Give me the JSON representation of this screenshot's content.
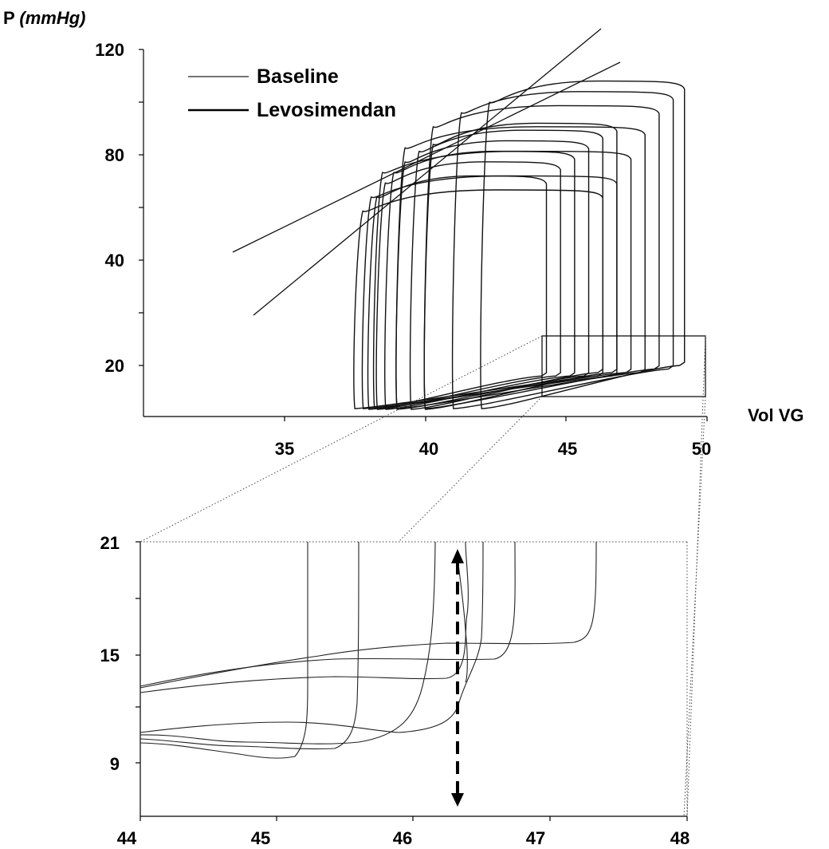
{
  "chart_data": [
    {
      "type": "line",
      "title": "",
      "ylabel_main": "P",
      "ylabel_unit": "(mmHg)",
      "xlabel": "Vol VG",
      "x_ticks": [
        "35",
        "40",
        "45",
        "50"
      ],
      "y_ticks": [
        "20",
        "40",
        "80",
        "120"
      ],
      "legend": [
        "Baseline",
        "Levosimendan"
      ],
      "legend_position": "top-left",
      "series": [
        {
          "name": "Baseline",
          "description_loops": [
            {
              "edv": 44.3,
              "esv": 38.0,
              "edp": 17,
              "esp": 68
            },
            {
              "edv": 44.8,
              "esv": 38.3,
              "edp": 17,
              "esp": 72
            },
            {
              "edv": 45.3,
              "esv": 38.6,
              "edp": 17,
              "esp": 75
            },
            {
              "edv": 45.8,
              "esv": 39.0,
              "edp": 17,
              "esp": 78
            },
            {
              "edv": 46.3,
              "esv": 39.5,
              "edp": 18,
              "esp": 81
            },
            {
              "edv": 46.8,
              "esv": 40.0,
              "edp": 18,
              "esp": 83
            }
          ]
        },
        {
          "name": "Levosimendan",
          "description_loops": [
            {
              "edv": 46.3,
              "esv": 37.5,
              "edp": 17,
              "esp": 64
            },
            {
              "edv": 46.8,
              "esv": 37.8,
              "edp": 17,
              "esp": 68
            },
            {
              "edv": 47.3,
              "esv": 38.2,
              "edp": 18,
              "esp": 75
            },
            {
              "edv": 47.8,
              "esv": 39.0,
              "edp": 18,
              "esp": 82
            },
            {
              "edv": 48.3,
              "esv": 40.0,
              "edp": 19,
              "esp": 88
            },
            {
              "edv": 48.8,
              "esv": 41.0,
              "edp": 19,
              "esp": 92
            },
            {
              "edv": 49.2,
              "esv": 42.0,
              "edp": 20,
              "esp": 95
            }
          ]
        }
      ],
      "espvr_lines": [
        {
          "x": [
            33.3,
            47.1
          ],
          "y": [
            42,
            113
          ]
        },
        {
          "x": [
            34.0,
            46.0
          ],
          "y": [
            30,
            127
          ]
        }
      ]
    },
    {
      "type": "line",
      "title": "",
      "x_ticks": [
        "44",
        "45",
        "46",
        "47",
        "48"
      ],
      "y_ticks": [
        "9",
        "15",
        "21"
      ],
      "xlim": [
        44,
        48
      ],
      "ylim": [
        6,
        21
      ],
      "note": "zoomed view of end-diastolic region",
      "arrow": {
        "x": 46.3,
        "y_from": 6.7,
        "y_to": 20.5,
        "style": "dashed-double"
      }
    }
  ]
}
